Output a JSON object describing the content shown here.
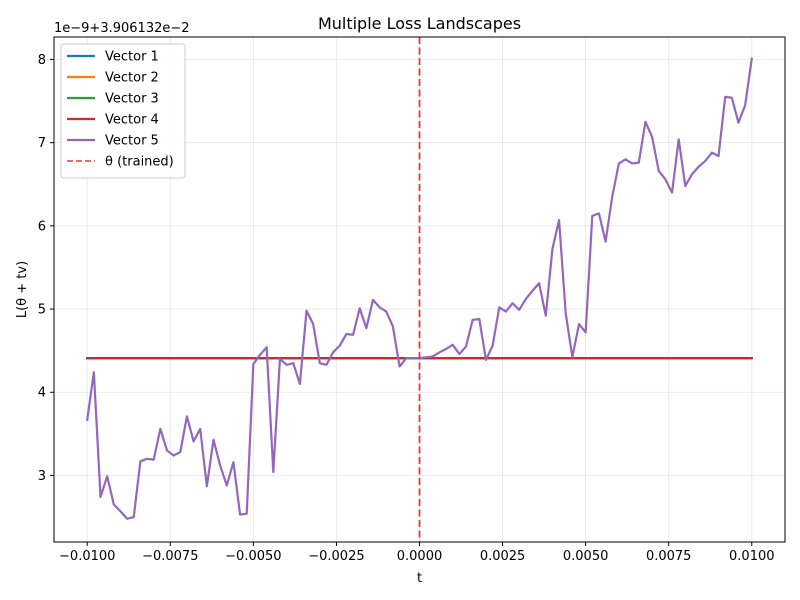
{
  "chart_data": {
    "type": "line",
    "title": "Multiple Loss Landscapes",
    "xlabel": "t",
    "ylabel": "L(θ + tv)",
    "offset_text": "1e−9+3.906132e−2",
    "xlim": [
      -0.011,
      0.011
    ],
    "ylim": [
      2.2,
      8.27
    ],
    "x_ticks": [
      -0.01,
      -0.0075,
      -0.005,
      -0.0025,
      0.0,
      0.0025,
      0.005,
      0.0075,
      0.01
    ],
    "x_tick_labels": [
      "−0.0100",
      "−0.0075",
      "−0.0050",
      "−0.0025",
      "0.0000",
      "0.0025",
      "0.0050",
      "0.0075",
      "0.0100"
    ],
    "y_ticks": [
      3,
      4,
      5,
      6,
      7,
      8
    ],
    "y_tick_labels": [
      "3",
      "4",
      "5",
      "6",
      "7",
      "8"
    ],
    "grid": true,
    "legend_position": "top-left",
    "vline": {
      "x": 0.0,
      "label": "θ (trained)",
      "color": "#e8393a"
    },
    "series": [
      {
        "name": "Vector 1",
        "color": "#1f77b4",
        "x": [
          -0.01,
          0.01
        ],
        "y": [
          4.41,
          4.41
        ]
      },
      {
        "name": "Vector 2",
        "color": "#ff7f0e",
        "x": [
          -0.01,
          0.01
        ],
        "y": [
          4.41,
          4.41
        ]
      },
      {
        "name": "Vector 3",
        "color": "#2ca02c",
        "x": [
          -0.01,
          0.01
        ],
        "y": [
          4.41,
          4.41
        ]
      },
      {
        "name": "Vector 4",
        "color": "#d62728",
        "x": [
          -0.01,
          0.01
        ],
        "y": [
          4.41,
          4.41
        ]
      },
      {
        "name": "Vector 5",
        "color": "#9467bd",
        "x": [
          -0.01,
          -0.0098,
          -0.0096,
          -0.0094,
          -0.0092,
          -0.009,
          -0.0088,
          -0.0086,
          -0.0084,
          -0.0082,
          -0.008,
          -0.0078,
          -0.0076,
          -0.0074,
          -0.0072,
          -0.007,
          -0.0068,
          -0.0066,
          -0.0064,
          -0.0062,
          -0.006,
          -0.0058,
          -0.0056,
          -0.0054,
          -0.0052,
          -0.005,
          -0.0048,
          -0.0046,
          -0.0044,
          -0.0042,
          -0.004,
          -0.0038,
          -0.0036,
          -0.0034,
          -0.0032,
          -0.003,
          -0.0028,
          -0.0026,
          -0.0024,
          -0.0022,
          -0.002,
          -0.0018,
          -0.0016,
          -0.0014,
          -0.0012,
          -0.001,
          -0.0008,
          -0.0006,
          -0.0004,
          -0.0002,
          0.0,
          0.0002,
          0.0004,
          0.0006,
          0.0008,
          0.001,
          0.0012,
          0.0014,
          0.0016,
          0.0018,
          0.002,
          0.0022,
          0.0024,
          0.0026,
          0.0028,
          0.003,
          0.0032,
          0.0034,
          0.0036,
          0.0038,
          0.004,
          0.0042,
          0.0044,
          0.0046,
          0.0048,
          0.005,
          0.0052,
          0.0054,
          0.0056,
          0.0058,
          0.006,
          0.0062,
          0.0064,
          0.0066,
          0.0068,
          0.007,
          0.0072,
          0.0074,
          0.0076,
          0.0078,
          0.008,
          0.0082,
          0.0084,
          0.0086,
          0.0088,
          0.009,
          0.0092,
          0.0094,
          0.0096,
          0.0098,
          0.01
        ],
        "y": [
          3.67,
          4.24,
          2.74,
          2.99,
          2.65,
          2.57,
          2.48,
          2.5,
          3.17,
          3.2,
          3.19,
          3.56,
          3.3,
          3.24,
          3.28,
          3.71,
          3.41,
          3.56,
          2.87,
          3.43,
          3.12,
          2.88,
          3.16,
          2.53,
          2.54,
          4.34,
          4.45,
          4.54,
          3.04,
          4.4,
          4.33,
          4.35,
          4.1,
          4.98,
          4.82,
          4.35,
          4.33,
          4.48,
          4.56,
          4.7,
          4.69,
          5.01,
          4.77,
          5.11,
          5.02,
          4.97,
          4.79,
          4.31,
          4.41,
          4.41,
          4.41,
          4.42,
          4.43,
          4.48,
          4.52,
          4.57,
          4.46,
          4.55,
          4.87,
          4.88,
          4.39,
          4.56,
          5.02,
          4.97,
          5.07,
          4.99,
          5.12,
          5.22,
          5.31,
          4.92,
          5.72,
          6.07,
          4.95,
          4.42,
          4.82,
          4.72,
          6.12,
          6.15,
          5.81,
          6.35,
          6.75,
          6.8,
          6.75,
          6.76,
          7.25,
          7.07,
          6.66,
          6.56,
          6.4,
          7.04,
          6.48,
          6.62,
          6.71,
          6.78,
          6.88,
          6.84,
          7.55,
          7.54,
          7.24,
          7.45,
          8.01
        ]
      }
    ]
  }
}
